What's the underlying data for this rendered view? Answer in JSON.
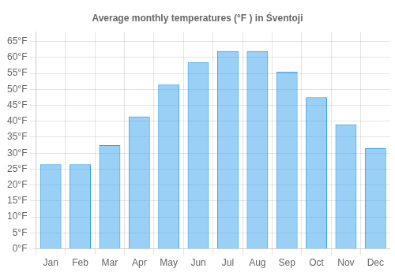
{
  "chart_data": {
    "type": "bar",
    "title": "Average monthly temperatures (°F ) in Śventoji",
    "categories": [
      "Jan",
      "Feb",
      "Mar",
      "Apr",
      "May",
      "Jun",
      "Jul",
      "Aug",
      "Sep",
      "Oct",
      "Nov",
      "Dec"
    ],
    "values": [
      26.5,
      26.5,
      32.5,
      41.5,
      51.5,
      58.5,
      62.0,
      62.0,
      55.5,
      47.5,
      39.0,
      31.5
    ],
    "ylim": [
      0,
      68
    ],
    "yticks": [
      {
        "value": 0,
        "label": "0°F"
      },
      {
        "value": 5,
        "label": "5°F"
      },
      {
        "value": 10,
        "label": "10°F"
      },
      {
        "value": 15,
        "label": "15°F"
      },
      {
        "value": 20,
        "label": "20°F"
      },
      {
        "value": 25,
        "label": "25°F"
      },
      {
        "value": 30,
        "label": "30°F"
      },
      {
        "value": 35,
        "label": "35°F"
      },
      {
        "value": 40,
        "label": "40°F"
      },
      {
        "value": 45,
        "label": "45°F"
      },
      {
        "value": 50,
        "label": "50°F"
      },
      {
        "value": 55,
        "label": "55°F"
      },
      {
        "value": 60,
        "label": "60°F"
      },
      {
        "value": 65,
        "label": "65°F"
      }
    ],
    "grid": true
  }
}
